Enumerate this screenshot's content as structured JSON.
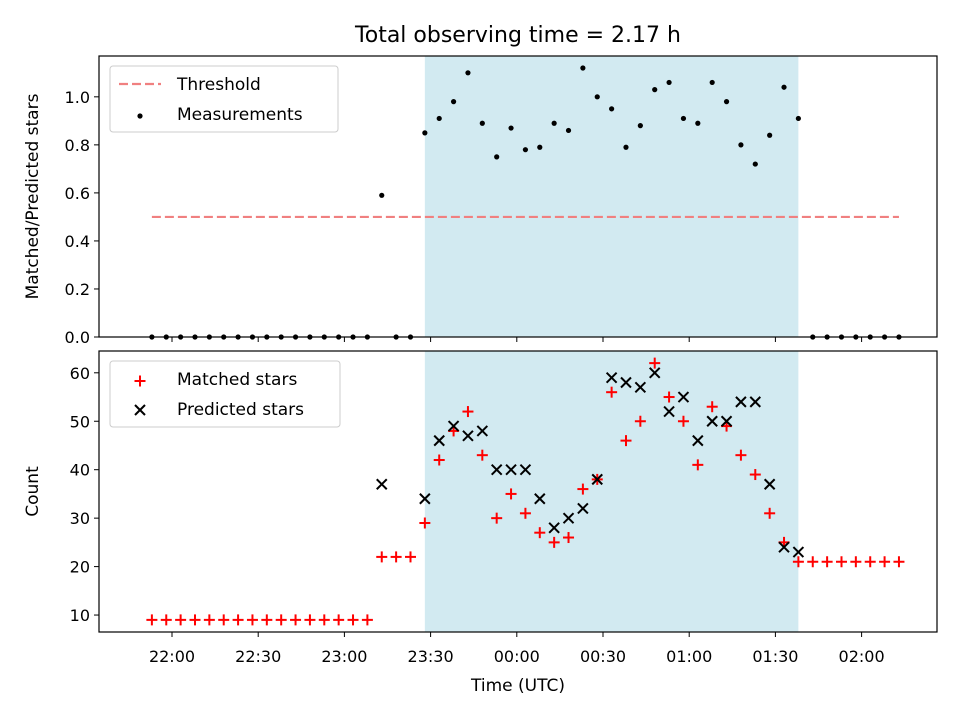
{
  "figure": {
    "title": "Total observing time = 2.17 h"
  },
  "colors": {
    "threshold": "#f08080",
    "measurements": "#000000",
    "matched": "#ff0000",
    "predicted": "#000000",
    "shade": "#add8e6"
  },
  "chart_data": [
    {
      "type": "scatter",
      "panel": "top",
      "ylabel": "Matched/Predicted stars",
      "xlabel": "",
      "ylim": [
        0,
        1.17
      ],
      "yticks": [
        "0.0",
        "0.2",
        "0.4",
        "0.6",
        "0.8",
        "1.0"
      ],
      "grid": false,
      "legend_position": "top-left",
      "shaded_interval": [
        "23:28",
        "01:38"
      ],
      "threshold": {
        "name": "Threshold",
        "value": 0.5,
        "x_range": [
          "21:53",
          "02:13"
        ],
        "style": "dashed"
      },
      "series": [
        {
          "name": "Measurements",
          "points": [
            {
              "x": "21:53",
              "y": 0.0
            },
            {
              "x": "21:58",
              "y": 0.0
            },
            {
              "x": "22:03",
              "y": 0.0
            },
            {
              "x": "22:08",
              "y": 0.0
            },
            {
              "x": "22:13",
              "y": 0.0
            },
            {
              "x": "22:18",
              "y": 0.0
            },
            {
              "x": "22:23",
              "y": 0.0
            },
            {
              "x": "22:28",
              "y": 0.0
            },
            {
              "x": "22:33",
              "y": 0.0
            },
            {
              "x": "22:38",
              "y": 0.0
            },
            {
              "x": "22:43",
              "y": 0.0
            },
            {
              "x": "22:48",
              "y": 0.0
            },
            {
              "x": "22:53",
              "y": 0.0
            },
            {
              "x": "22:58",
              "y": 0.0
            },
            {
              "x": "23:03",
              "y": 0.0
            },
            {
              "x": "23:08",
              "y": 0.0
            },
            {
              "x": "23:13",
              "y": 0.59
            },
            {
              "x": "23:18",
              "y": 0.0
            },
            {
              "x": "23:23",
              "y": 0.0
            },
            {
              "x": "23:28",
              "y": 0.85
            },
            {
              "x": "23:33",
              "y": 0.91
            },
            {
              "x": "23:38",
              "y": 0.98
            },
            {
              "x": "23:43",
              "y": 1.1
            },
            {
              "x": "23:48",
              "y": 0.89
            },
            {
              "x": "23:53",
              "y": 0.75
            },
            {
              "x": "23:58",
              "y": 0.87
            },
            {
              "x": "00:03",
              "y": 0.78
            },
            {
              "x": "00:08",
              "y": 0.79
            },
            {
              "x": "00:13",
              "y": 0.89
            },
            {
              "x": "00:18",
              "y": 0.86
            },
            {
              "x": "00:23",
              "y": 1.12
            },
            {
              "x": "00:28",
              "y": 1.0
            },
            {
              "x": "00:33",
              "y": 0.95
            },
            {
              "x": "00:38",
              "y": 0.79
            },
            {
              "x": "00:43",
              "y": 0.88
            },
            {
              "x": "00:48",
              "y": 1.03
            },
            {
              "x": "00:53",
              "y": 1.06
            },
            {
              "x": "00:58",
              "y": 0.91
            },
            {
              "x": "01:03",
              "y": 0.89
            },
            {
              "x": "01:08",
              "y": 1.06
            },
            {
              "x": "01:13",
              "y": 0.98
            },
            {
              "x": "01:18",
              "y": 0.8
            },
            {
              "x": "01:23",
              "y": 0.72
            },
            {
              "x": "01:28",
              "y": 0.84
            },
            {
              "x": "01:33",
              "y": 1.04
            },
            {
              "x": "01:38",
              "y": 0.91
            },
            {
              "x": "01:43",
              "y": 0.0
            },
            {
              "x": "01:48",
              "y": 0.0
            },
            {
              "x": "01:53",
              "y": 0.0
            },
            {
              "x": "01:58",
              "y": 0.0
            },
            {
              "x": "02:03",
              "y": 0.0
            },
            {
              "x": "02:08",
              "y": 0.0
            },
            {
              "x": "02:13",
              "y": 0.0
            }
          ]
        }
      ]
    },
    {
      "type": "scatter",
      "panel": "bottom",
      "ylabel": "Count",
      "xlabel": "Time (UTC)",
      "ylim": [
        6.5,
        64.5
      ],
      "yticks": [
        "10",
        "20",
        "30",
        "40",
        "50",
        "60"
      ],
      "xticks": [
        "22:00",
        "22:30",
        "23:00",
        "23:30",
        "00:00",
        "00:30",
        "01:00",
        "01:30",
        "02:00"
      ],
      "grid": false,
      "legend_position": "top-left",
      "shaded_interval": [
        "23:28",
        "01:38"
      ],
      "series": [
        {
          "name": "Matched stars",
          "marker": "plus",
          "points": [
            {
              "x": "21:53",
              "y": 9
            },
            {
              "x": "21:58",
              "y": 9
            },
            {
              "x": "22:03",
              "y": 9
            },
            {
              "x": "22:08",
              "y": 9
            },
            {
              "x": "22:13",
              "y": 9
            },
            {
              "x": "22:18",
              "y": 9
            },
            {
              "x": "22:23",
              "y": 9
            },
            {
              "x": "22:28",
              "y": 9
            },
            {
              "x": "22:33",
              "y": 9
            },
            {
              "x": "22:38",
              "y": 9
            },
            {
              "x": "22:43",
              "y": 9
            },
            {
              "x": "22:48",
              "y": 9
            },
            {
              "x": "22:53",
              "y": 9
            },
            {
              "x": "22:58",
              "y": 9
            },
            {
              "x": "23:03",
              "y": 9
            },
            {
              "x": "23:08",
              "y": 9
            },
            {
              "x": "23:13",
              "y": 22
            },
            {
              "x": "23:18",
              "y": 22
            },
            {
              "x": "23:23",
              "y": 22
            },
            {
              "x": "23:28",
              "y": 29
            },
            {
              "x": "23:33",
              "y": 42
            },
            {
              "x": "23:38",
              "y": 48
            },
            {
              "x": "23:43",
              "y": 52
            },
            {
              "x": "23:48",
              "y": 43
            },
            {
              "x": "23:53",
              "y": 30
            },
            {
              "x": "23:58",
              "y": 35
            },
            {
              "x": "00:03",
              "y": 31
            },
            {
              "x": "00:08",
              "y": 27
            },
            {
              "x": "00:13",
              "y": 25
            },
            {
              "x": "00:18",
              "y": 26
            },
            {
              "x": "00:23",
              "y": 36
            },
            {
              "x": "00:28",
              "y": 38
            },
            {
              "x": "00:33",
              "y": 56
            },
            {
              "x": "00:38",
              "y": 46
            },
            {
              "x": "00:43",
              "y": 50
            },
            {
              "x": "00:48",
              "y": 62
            },
            {
              "x": "00:53",
              "y": 55
            },
            {
              "x": "00:58",
              "y": 50
            },
            {
              "x": "01:03",
              "y": 41
            },
            {
              "x": "01:08",
              "y": 53
            },
            {
              "x": "01:13",
              "y": 49
            },
            {
              "x": "01:18",
              "y": 43
            },
            {
              "x": "01:23",
              "y": 39
            },
            {
              "x": "01:28",
              "y": 31
            },
            {
              "x": "01:33",
              "y": 25
            },
            {
              "x": "01:38",
              "y": 21
            },
            {
              "x": "01:43",
              "y": 21
            },
            {
              "x": "01:48",
              "y": 21
            },
            {
              "x": "01:53",
              "y": 21
            },
            {
              "x": "01:58",
              "y": 21
            },
            {
              "x": "02:03",
              "y": 21
            },
            {
              "x": "02:08",
              "y": 21
            },
            {
              "x": "02:13",
              "y": 21
            }
          ]
        },
        {
          "name": "Predicted stars",
          "marker": "x",
          "points": [
            {
              "x": "23:13",
              "y": 37
            },
            {
              "x": "23:28",
              "y": 34
            },
            {
              "x": "23:33",
              "y": 46
            },
            {
              "x": "23:38",
              "y": 49
            },
            {
              "x": "23:43",
              "y": 47
            },
            {
              "x": "23:48",
              "y": 48
            },
            {
              "x": "23:53",
              "y": 40
            },
            {
              "x": "23:58",
              "y": 40
            },
            {
              "x": "00:03",
              "y": 40
            },
            {
              "x": "00:08",
              "y": 34
            },
            {
              "x": "00:13",
              "y": 28
            },
            {
              "x": "00:18",
              "y": 30
            },
            {
              "x": "00:23",
              "y": 32
            },
            {
              "x": "00:28",
              "y": 38
            },
            {
              "x": "00:33",
              "y": 59
            },
            {
              "x": "00:38",
              "y": 58
            },
            {
              "x": "00:43",
              "y": 57
            },
            {
              "x": "00:48",
              "y": 60
            },
            {
              "x": "00:53",
              "y": 52
            },
            {
              "x": "00:58",
              "y": 55
            },
            {
              "x": "01:03",
              "y": 46
            },
            {
              "x": "01:08",
              "y": 50
            },
            {
              "x": "01:13",
              "y": 50
            },
            {
              "x": "01:18",
              "y": 54
            },
            {
              "x": "01:23",
              "y": 54
            },
            {
              "x": "01:28",
              "y": 37
            },
            {
              "x": "01:33",
              "y": 24
            },
            {
              "x": "01:38",
              "y": 23
            }
          ]
        }
      ]
    }
  ]
}
